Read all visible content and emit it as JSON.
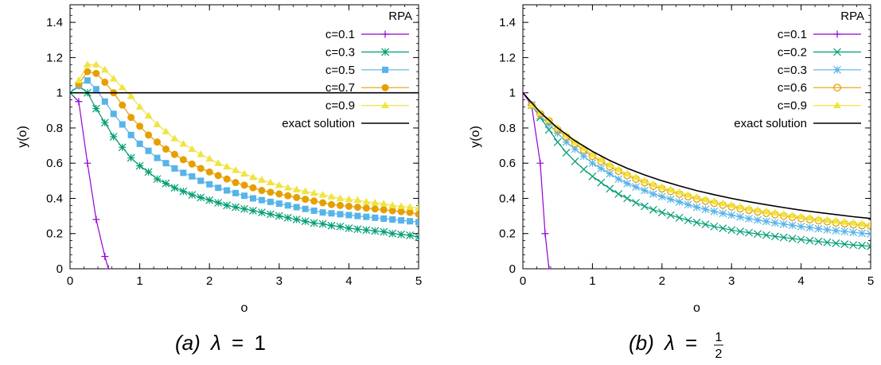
{
  "chart_data": [
    {
      "type": "line",
      "caption": "(a) λ = 1",
      "caption_prefix": "(a)",
      "caption_lambda": "λ",
      "caption_value": "1",
      "xlabel": "o",
      "ylabel": "y(o)",
      "xlim": [
        0,
        5
      ],
      "ylim": [
        0,
        1.5
      ],
      "xticks": [
        0,
        1,
        2,
        3,
        4,
        5
      ],
      "yticks": [
        0,
        0.2,
        0.4,
        0.6,
        0.8,
        1,
        1.2,
        1.4
      ],
      "legend_title": "RPA",
      "legend_position": "top-right",
      "grid": false,
      "series": [
        {
          "name": "c=0.1",
          "color": "#9400d3",
          "marker": "plus",
          "x": [
            0,
            0.125,
            0.25,
            0.375,
            0.5,
            0.55
          ],
          "y": [
            1,
            0.95,
            0.6,
            0.28,
            0.07,
            0.0
          ]
        },
        {
          "name": "c=0.3",
          "color": "#009e73",
          "marker": "star",
          "x": [
            0,
            0.125,
            0.25,
            0.375,
            0.5,
            0.625,
            0.75,
            0.875,
            1,
            1.125,
            1.25,
            1.375,
            1.5,
            1.625,
            1.75,
            1.875,
            2,
            2.125,
            2.25,
            2.375,
            2.5,
            2.625,
            2.75,
            2.875,
            3,
            3.125,
            3.25,
            3.375,
            3.5,
            3.625,
            3.75,
            3.875,
            4,
            4.125,
            4.25,
            4.375,
            4.5,
            4.625,
            4.75,
            4.875,
            5
          ],
          "y": [
            1,
            1.04,
            1.0,
            0.91,
            0.83,
            0.75,
            0.69,
            0.63,
            0.585,
            0.55,
            0.51,
            0.485,
            0.46,
            0.44,
            0.42,
            0.405,
            0.39,
            0.375,
            0.36,
            0.35,
            0.34,
            0.33,
            0.32,
            0.31,
            0.3,
            0.29,
            0.28,
            0.27,
            0.26,
            0.255,
            0.245,
            0.24,
            0.23,
            0.225,
            0.22,
            0.215,
            0.21,
            0.2,
            0.195,
            0.19,
            0.18
          ]
        },
        {
          "name": "c=0.5",
          "color": "#56b4e9",
          "marker": "square",
          "x": [
            0.125,
            0.25,
            0.375,
            0.5,
            0.625,
            0.75,
            0.875,
            1,
            1.125,
            1.25,
            1.375,
            1.5,
            1.625,
            1.75,
            1.875,
            2,
            2.125,
            2.25,
            2.375,
            2.5,
            2.625,
            2.75,
            2.875,
            3,
            3.125,
            3.25,
            3.375,
            3.5,
            3.625,
            3.75,
            3.875,
            4,
            4.125,
            4.25,
            4.375,
            4.5,
            4.625,
            4.75,
            4.875,
            5
          ],
          "y": [
            1.04,
            1.07,
            1.02,
            0.95,
            0.88,
            0.82,
            0.76,
            0.71,
            0.67,
            0.63,
            0.6,
            0.57,
            0.545,
            0.525,
            0.5,
            0.48,
            0.46,
            0.445,
            0.43,
            0.415,
            0.4,
            0.39,
            0.38,
            0.37,
            0.36,
            0.35,
            0.34,
            0.33,
            0.32,
            0.315,
            0.31,
            0.305,
            0.3,
            0.295,
            0.29,
            0.285,
            0.28,
            0.275,
            0.27,
            0.265
          ]
        },
        {
          "name": "c=0.7",
          "color": "#e69f00",
          "marker": "circle",
          "x": [
            0.125,
            0.25,
            0.375,
            0.5,
            0.625,
            0.75,
            0.875,
            1,
            1.125,
            1.25,
            1.375,
            1.5,
            1.625,
            1.75,
            1.875,
            2,
            2.125,
            2.25,
            2.375,
            2.5,
            2.625,
            2.75,
            2.875,
            3,
            3.125,
            3.25,
            3.375,
            3.5,
            3.625,
            3.75,
            3.875,
            4,
            4.125,
            4.25,
            4.375,
            4.5,
            4.625,
            4.75,
            4.875,
            5
          ],
          "y": [
            1.05,
            1.12,
            1.11,
            1.06,
            1.0,
            0.93,
            0.86,
            0.81,
            0.76,
            0.72,
            0.68,
            0.65,
            0.62,
            0.595,
            0.57,
            0.55,
            0.53,
            0.51,
            0.49,
            0.475,
            0.46,
            0.445,
            0.435,
            0.425,
            0.415,
            0.405,
            0.395,
            0.385,
            0.375,
            0.365,
            0.36,
            0.355,
            0.35,
            0.345,
            0.34,
            0.335,
            0.33,
            0.325,
            0.32,
            0.31
          ]
        },
        {
          "name": "c=0.9",
          "color": "#f0e442",
          "marker": "triangle",
          "x": [
            0.125,
            0.25,
            0.375,
            0.5,
            0.625,
            0.75,
            0.875,
            1,
            1.125,
            1.25,
            1.375,
            1.5,
            1.625,
            1.75,
            1.875,
            2,
            2.125,
            2.25,
            2.375,
            2.5,
            2.625,
            2.75,
            2.875,
            3,
            3.125,
            3.25,
            3.375,
            3.5,
            3.625,
            3.75,
            3.875,
            4,
            4.125,
            4.25,
            4.375,
            4.5,
            4.625,
            4.75,
            4.875,
            5
          ],
          "y": [
            1.07,
            1.16,
            1.16,
            1.13,
            1.08,
            1.03,
            0.98,
            0.92,
            0.87,
            0.82,
            0.78,
            0.74,
            0.71,
            0.68,
            0.65,
            0.625,
            0.6,
            0.58,
            0.56,
            0.54,
            0.52,
            0.505,
            0.49,
            0.475,
            0.46,
            0.45,
            0.44,
            0.43,
            0.42,
            0.41,
            0.4,
            0.395,
            0.39,
            0.38,
            0.375,
            0.37,
            0.36,
            0.355,
            0.35,
            0.345
          ]
        },
        {
          "name": "exact solution",
          "color": "#000000",
          "marker": "none",
          "x": [
            0,
            5
          ],
          "y": [
            1,
            1
          ]
        }
      ]
    },
    {
      "type": "line",
      "caption": "(b) λ = 1/2",
      "caption_prefix": "(b)",
      "caption_lambda": "λ",
      "caption_num": "1",
      "caption_den": "2",
      "xlabel": "o",
      "ylabel": "y(o)",
      "xlim": [
        0,
        5
      ],
      "ylim": [
        0,
        1.5
      ],
      "xticks": [
        0,
        1,
        2,
        3,
        4,
        5
      ],
      "yticks": [
        0,
        0.2,
        0.4,
        0.6,
        0.8,
        1,
        1.2,
        1.4
      ],
      "legend_title": "RPA",
      "legend_position": "top-right",
      "grid": false,
      "series": [
        {
          "name": "c=0.1",
          "color": "#9400d3",
          "marker": "plus",
          "x": [
            0,
            0.125,
            0.25,
            0.32,
            0.375
          ],
          "y": [
            1,
            0.93,
            0.6,
            0.2,
            0.0
          ]
        },
        {
          "name": "c=0.2",
          "color": "#009e73",
          "marker": "x",
          "x": [
            0.125,
            0.25,
            0.375,
            0.5,
            0.625,
            0.75,
            0.875,
            1,
            1.125,
            1.25,
            1.375,
            1.5,
            1.625,
            1.75,
            1.875,
            2,
            2.125,
            2.25,
            2.375,
            2.5,
            2.625,
            2.75,
            2.875,
            3,
            3.125,
            3.25,
            3.375,
            3.5,
            3.625,
            3.75,
            3.875,
            4,
            4.125,
            4.25,
            4.375,
            4.5,
            4.625,
            4.75,
            4.875,
            5
          ],
          "y": [
            0.93,
            0.86,
            0.79,
            0.72,
            0.66,
            0.61,
            0.565,
            0.525,
            0.49,
            0.455,
            0.425,
            0.4,
            0.375,
            0.355,
            0.335,
            0.32,
            0.305,
            0.29,
            0.275,
            0.263,
            0.252,
            0.24,
            0.23,
            0.22,
            0.212,
            0.205,
            0.198,
            0.191,
            0.184,
            0.178,
            0.172,
            0.166,
            0.16,
            0.155,
            0.15,
            0.145,
            0.14,
            0.135,
            0.132,
            0.128
          ]
        },
        {
          "name": "c=0.3",
          "color": "#56b4e9",
          "marker": "star",
          "x": [
            0.125,
            0.25,
            0.375,
            0.5,
            0.625,
            0.75,
            0.875,
            1,
            1.125,
            1.25,
            1.375,
            1.5,
            1.625,
            1.75,
            1.875,
            2,
            2.125,
            2.25,
            2.375,
            2.5,
            2.625,
            2.75,
            2.875,
            3,
            3.125,
            3.25,
            3.375,
            3.5,
            3.625,
            3.75,
            3.875,
            4,
            4.125,
            4.25,
            4.375,
            4.5,
            4.625,
            4.75,
            4.875,
            5
          ],
          "y": [
            0.93,
            0.87,
            0.82,
            0.77,
            0.72,
            0.68,
            0.64,
            0.6,
            0.57,
            0.54,
            0.51,
            0.485,
            0.465,
            0.445,
            0.425,
            0.41,
            0.395,
            0.38,
            0.365,
            0.35,
            0.338,
            0.326,
            0.315,
            0.305,
            0.295,
            0.285,
            0.277,
            0.269,
            0.261,
            0.254,
            0.247,
            0.24,
            0.234,
            0.228,
            0.222,
            0.217,
            0.212,
            0.207,
            0.202,
            0.198
          ]
        },
        {
          "name": "c=0.6",
          "color": "#e69f00",
          "marker": "open-circle",
          "x": [
            0.125,
            0.25,
            0.375,
            0.5,
            0.625,
            0.75,
            0.875,
            1,
            1.125,
            1.25,
            1.375,
            1.5,
            1.625,
            1.75,
            1.875,
            2,
            2.125,
            2.25,
            2.375,
            2.5,
            2.625,
            2.75,
            2.875,
            3,
            3.125,
            3.25,
            3.375,
            3.5,
            3.625,
            3.75,
            3.875,
            4,
            4.125,
            4.25,
            4.375,
            4.5,
            4.625,
            4.75,
            4.875,
            5
          ],
          "y": [
            0.93,
            0.88,
            0.84,
            0.79,
            0.75,
            0.71,
            0.675,
            0.64,
            0.61,
            0.58,
            0.555,
            0.53,
            0.51,
            0.49,
            0.47,
            0.455,
            0.44,
            0.425,
            0.41,
            0.397,
            0.385,
            0.373,
            0.362,
            0.352,
            0.342,
            0.333,
            0.324,
            0.316,
            0.308,
            0.3,
            0.293,
            0.286,
            0.28,
            0.274,
            0.268,
            0.262,
            0.256,
            0.251,
            0.246,
            0.242
          ]
        },
        {
          "name": "c=0.9",
          "color": "#f0e442",
          "marker": "triangle",
          "x": [
            0.125,
            0.25,
            0.375,
            0.5,
            0.625,
            0.75,
            0.875,
            1,
            1.125,
            1.25,
            1.375,
            1.5,
            1.625,
            1.75,
            1.875,
            2,
            2.125,
            2.25,
            2.375,
            2.5,
            2.625,
            2.75,
            2.875,
            3,
            3.125,
            3.25,
            3.375,
            3.5,
            3.625,
            3.75,
            3.875,
            4,
            4.125,
            4.25,
            4.375,
            4.5,
            4.625,
            4.75,
            4.875,
            5
          ],
          "y": [
            0.93,
            0.885,
            0.845,
            0.8,
            0.76,
            0.72,
            0.685,
            0.65,
            0.62,
            0.59,
            0.565,
            0.54,
            0.52,
            0.5,
            0.48,
            0.465,
            0.45,
            0.435,
            0.42,
            0.407,
            0.395,
            0.383,
            0.372,
            0.362,
            0.352,
            0.343,
            0.334,
            0.326,
            0.318,
            0.31,
            0.303,
            0.296,
            0.29,
            0.284,
            0.278,
            0.272,
            0.266,
            0.261,
            0.256,
            0.252
          ]
        },
        {
          "name": "exact solution",
          "color": "#000000",
          "marker": "none",
          "x": [
            0,
            0.25,
            0.5,
            0.75,
            1,
            1.25,
            1.5,
            1.75,
            2,
            2.25,
            2.5,
            2.75,
            3,
            3.25,
            3.5,
            3.75,
            4,
            4.25,
            4.5,
            4.75,
            5
          ],
          "y": [
            1,
            0.889,
            0.8,
            0.727,
            0.667,
            0.615,
            0.571,
            0.533,
            0.5,
            0.471,
            0.444,
            0.421,
            0.4,
            0.381,
            0.364,
            0.348,
            0.333,
            0.32,
            0.308,
            0.296,
            0.286
          ]
        }
      ]
    }
  ]
}
